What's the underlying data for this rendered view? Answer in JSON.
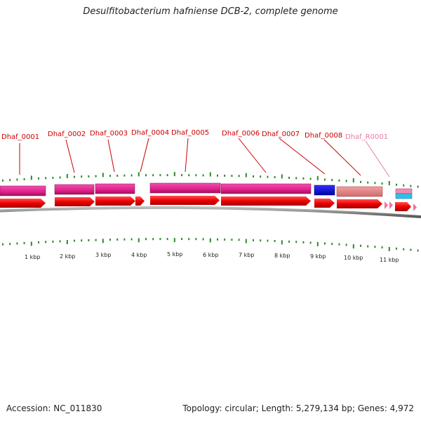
{
  "title": "Desulfitobacterium hafniense DCB-2, complete genome",
  "footer": {
    "accession": "Accession: NC_011830",
    "summary": "Topology: circular; Length: 5,279,134 bp; Genes: 4,972"
  },
  "colors": {
    "gene_label": "#cc0000",
    "rna_label": "#e87aa8",
    "cds_arrow": "#ee0000",
    "gene_bar": "#e0208a",
    "blue_bar": "#0000dd",
    "salmon_bar": "#e88080",
    "cyan_bar": "#30c0e8",
    "pink_arrow": "#f070a0",
    "tick": "#2a8a2a",
    "backbone": "#8a8a8a"
  },
  "gene_labels": [
    {
      "label": "Dhaf_0001"
    },
    {
      "label": "Dhaf_0002"
    },
    {
      "label": "Dhaf_0003"
    },
    {
      "label": "Dhaf_0004"
    },
    {
      "label": "Dhaf_0005"
    },
    {
      "label": "Dhaf_0006"
    },
    {
      "label": "Dhaf_0007"
    },
    {
      "label": "Dhaf_0008"
    },
    {
      "label": "Dhaf_R0001",
      "type": "rna"
    }
  ],
  "scale_labels": [
    "1 kbp",
    "2 kbp",
    "3 kbp",
    "4 kbp",
    "5 kbp",
    "6 kbp",
    "7 kbp",
    "8 kbp",
    "9 kbp",
    "10 kbp",
    "11 kbp"
  ]
}
